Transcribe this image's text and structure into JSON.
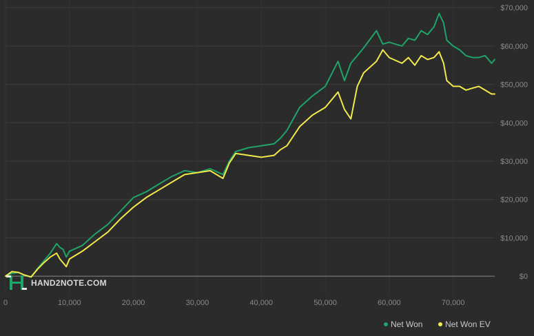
{
  "chart_data": {
    "type": "line",
    "xlim": [
      0,
      76500
    ],
    "ylim": [
      -5000,
      72000
    ],
    "grid": true,
    "legend_position": "bottom-right",
    "x_ticks": [
      0,
      10000,
      20000,
      30000,
      40000,
      50000,
      60000,
      70000
    ],
    "x_tick_labels": [
      "0",
      "10,000",
      "20,000",
      "30,000",
      "40,000",
      "50,000",
      "60,000",
      "70,000"
    ],
    "y_ticks": [
      0,
      10000,
      20000,
      30000,
      40000,
      50000,
      60000,
      70000
    ],
    "y_tick_labels": [
      "$0",
      "$10,000",
      "$20,000",
      "$30,000",
      "$40,000",
      "$50,000",
      "$60,000",
      "$70,000"
    ],
    "series": [
      {
        "name": "Net Won",
        "color": "#1fa46a",
        "x": [
          0,
          1000,
          2000,
          3000,
          4000,
          5000,
          6000,
          7000,
          8000,
          8500,
          9000,
          9500,
          10000,
          12000,
          14000,
          16000,
          18000,
          20000,
          22000,
          24000,
          26000,
          28000,
          30000,
          32000,
          34000,
          35000,
          36000,
          38000,
          40000,
          42000,
          43000,
          44000,
          46000,
          48000,
          50000,
          52000,
          53000,
          54000,
          55000,
          56000,
          58000,
          59000,
          60000,
          62000,
          63000,
          64000,
          65000,
          66000,
          67000,
          67800,
          68500,
          69000,
          70000,
          71000,
          72000,
          73000,
          74000,
          75000,
          76000,
          76500
        ],
        "y": [
          0,
          700,
          1000,
          200,
          -200,
          2000,
          4000,
          6000,
          8500,
          7500,
          7000,
          5000,
          6500,
          8000,
          11000,
          13500,
          17000,
          20500,
          22000,
          24000,
          26000,
          27500,
          27000,
          28000,
          26500,
          30000,
          32500,
          33500,
          34000,
          34500,
          36000,
          38000,
          44000,
          47000,
          49500,
          56000,
          51000,
          55500,
          57500,
          59500,
          64000,
          60500,
          61000,
          60000,
          62000,
          61500,
          64000,
          63000,
          65000,
          68500,
          66000,
          61500,
          60000,
          59000,
          57500,
          57000,
          57000,
          57500,
          55500,
          56500
        ]
      },
      {
        "name": "Net Won  EV",
        "color": "#f2ea4b",
        "x": [
          0,
          1000,
          2000,
          3000,
          4000,
          5000,
          6000,
          7000,
          8000,
          8500,
          9000,
          9500,
          10000,
          12000,
          14000,
          16000,
          18000,
          20000,
          22000,
          24000,
          26000,
          28000,
          30000,
          32000,
          34000,
          35000,
          36000,
          38000,
          40000,
          42000,
          43000,
          44000,
          46000,
          48000,
          50000,
          52000,
          53000,
          54000,
          55000,
          56000,
          58000,
          59000,
          60000,
          62000,
          63000,
          64000,
          65000,
          66000,
          67000,
          67800,
          68500,
          69000,
          70000,
          71000,
          72000,
          73000,
          74000,
          75000,
          76000,
          76500
        ],
        "y": [
          0,
          1200,
          1000,
          300,
          -200,
          1800,
          3500,
          5000,
          6000,
          4500,
          3500,
          2500,
          4500,
          6500,
          9000,
          11500,
          15000,
          18000,
          20500,
          22500,
          24500,
          26500,
          27000,
          27500,
          25500,
          29500,
          32000,
          31500,
          31000,
          31500,
          33000,
          34000,
          39000,
          42000,
          44000,
          48000,
          43500,
          41000,
          49500,
          53000,
          56000,
          59000,
          57000,
          55500,
          57000,
          55000,
          57500,
          56500,
          57000,
          58500,
          55500,
          51000,
          49500,
          49500,
          48500,
          49000,
          49500,
          48500,
          47500,
          47500
        ]
      }
    ]
  },
  "watermark": {
    "text": "HAND2NOTE.COM"
  }
}
